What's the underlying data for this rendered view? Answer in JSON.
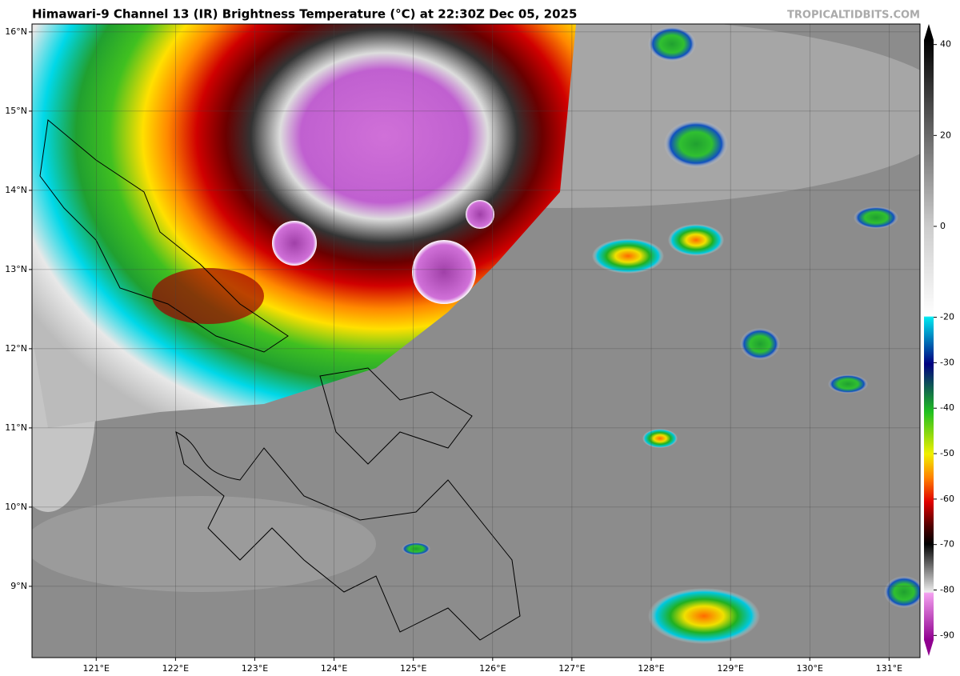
{
  "title": "Himawari-9 Channel 13 (IR) Brightness Temperature (°C) at 22:30Z Dec 05, 2025",
  "credit": "TROPICALTIDBITS.COM",
  "map": {
    "xlim": [
      120.19,
      131.39
    ],
    "ylim": [
      8.1,
      16.1
    ],
    "xticks": [
      {
        "value": 121,
        "label": "121°E"
      },
      {
        "value": 122,
        "label": "122°E"
      },
      {
        "value": 123,
        "label": "123°E"
      },
      {
        "value": 124,
        "label": "124°E"
      },
      {
        "value": 125,
        "label": "125°E"
      },
      {
        "value": 126,
        "label": "126°E"
      },
      {
        "value": 127,
        "label": "127°E"
      },
      {
        "value": 128,
        "label": "128°E"
      },
      {
        "value": 129,
        "label": "129°E"
      },
      {
        "value": 130,
        "label": "130°E"
      },
      {
        "value": 131,
        "label": "131°E"
      }
    ],
    "yticks": [
      {
        "value": 16,
        "label": "16°N"
      },
      {
        "value": 15,
        "label": "15°N"
      },
      {
        "value": 14,
        "label": "14°N"
      },
      {
        "value": 13,
        "label": "13°N"
      },
      {
        "value": 12,
        "label": "12°N"
      },
      {
        "value": 11,
        "label": "11°N"
      },
      {
        "value": 10,
        "label": "10°N"
      },
      {
        "value": 9,
        "label": "9°N"
      }
    ],
    "grid": true
  },
  "colorbar": {
    "lim": [
      -91,
      41
    ],
    "ticks": [
      40,
      20,
      0,
      -20,
      -30,
      -40,
      -50,
      -60,
      -70,
      -80,
      -90
    ]
  }
}
